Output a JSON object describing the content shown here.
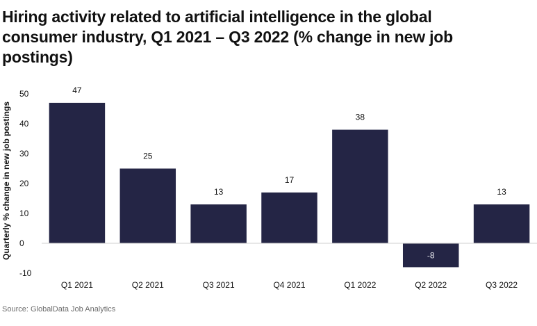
{
  "chart_data": {
    "type": "bar",
    "title": "Hiring activity related to artificial intelligence in the global consumer industry, Q1 2021 – Q3 2022 (% change in new job postings)",
    "ylabel": "Quarterly % change in new job postings",
    "xlabel": "",
    "categories": [
      "Q1 2021",
      "Q2 2021",
      "Q3 2021",
      "Q4 2021",
      "Q1 2022",
      "Q2 2022",
      "Q3 2022"
    ],
    "values": [
      47,
      25,
      13,
      17,
      38,
      -8,
      13
    ],
    "data_labels": [
      "47",
      "25",
      "13",
      "17",
      "38",
      "-8",
      "13"
    ],
    "ylim": [
      -10,
      50
    ],
    "yticks": [
      "-10",
      "0",
      "10",
      "20",
      "30",
      "40",
      "50"
    ],
    "grid": false,
    "bar_color": "#242545",
    "source": "Source: GlobalData Job Analytics"
  }
}
